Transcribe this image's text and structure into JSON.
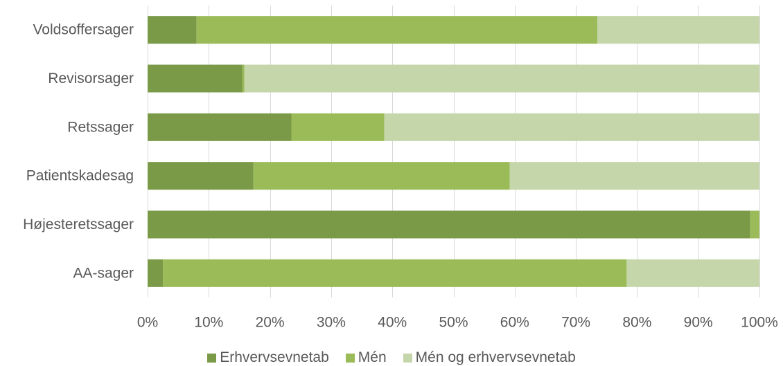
{
  "chart_data": {
    "type": "bar",
    "orientation": "horizontal",
    "stacked": true,
    "percent_stacked": true,
    "categories": [
      "Voldsoffersager",
      "Revisorsager",
      "Retssager",
      "Patientskadesag",
      "Højesteretssager",
      "AA-sager"
    ],
    "series": [
      {
        "name": "Erhvervsevnetab",
        "color": "#7a9a48",
        "values": [
          8,
          15.5,
          23.5,
          17.3,
          98.5,
          2.5
        ]
      },
      {
        "name": "Mén",
        "color": "#9bbb59",
        "values": [
          65.5,
          0.3,
          15.2,
          41.9,
          1.5,
          75.8
        ]
      },
      {
        "name": "Mén og erhvervsevnetab",
        "color": "#c5d6aa",
        "values": [
          26.5,
          84.2,
          61.3,
          40.8,
          0,
          21.7
        ]
      }
    ],
    "xticks": [
      "0%",
      "10%",
      "20%",
      "30%",
      "40%",
      "50%",
      "60%",
      "70%",
      "80%",
      "90%",
      "100%"
    ],
    "xlim": [
      0,
      100
    ],
    "grid": true,
    "gridline_color": "#d9d9d9",
    "legend_position": "bottom"
  }
}
